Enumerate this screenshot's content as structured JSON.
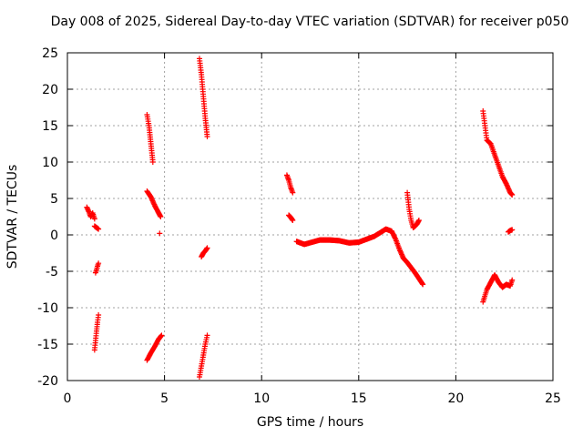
{
  "chart_data": {
    "type": "scatter",
    "title": "Day 008 of 2025, Sidereal Day-to-day VTEC variation (SDTVAR) for receiver p050",
    "xlabel": "GPS time / hours",
    "ylabel": "SDTVAR / TECUs",
    "xlim": [
      0,
      25
    ],
    "ylim": [
      -20,
      25
    ],
    "xticks": [
      "0",
      "5",
      "10",
      "15",
      "20",
      "25"
    ],
    "yticks": [
      "-20",
      "-15",
      "-10",
      "-5",
      "0",
      "5",
      "10",
      "15",
      "20",
      "25"
    ],
    "grid": true,
    "marker": "+",
    "color": "#ff0000",
    "segments": [
      {
        "x": [
          1.0,
          1.1,
          1.2,
          1.3,
          1.4
        ],
        "y": [
          3.8,
          3.2,
          2.5,
          3.0,
          2.2
        ]
      },
      {
        "x": [
          1.4,
          1.6
        ],
        "y": [
          1.2,
          0.8
        ]
      },
      {
        "x": [
          1.45,
          1.5,
          1.55,
          1.6
        ],
        "y": [
          -5.2,
          -4.8,
          -4.3,
          -3.9
        ]
      },
      {
        "x": [
          1.4,
          1.45,
          1.5,
          1.55,
          1.6
        ],
        "y": [
          -15.8,
          -14.5,
          -13.2,
          -12.0,
          -11.0
        ]
      },
      {
        "x": [
          4.1,
          4.2,
          4.3,
          4.4
        ],
        "y": [
          16.5,
          15.0,
          12.5,
          10.0
        ]
      },
      {
        "x": [
          4.1,
          4.3,
          4.5,
          4.7,
          4.8
        ],
        "y": [
          6.0,
          5.2,
          4.0,
          3.0,
          2.5
        ]
      },
      {
        "x": [
          4.75
        ],
        "y": [
          0.2
        ]
      },
      {
        "x": [
          4.1,
          4.3,
          4.5,
          4.7,
          4.85
        ],
        "y": [
          -17.2,
          -16.2,
          -15.3,
          -14.3,
          -13.8
        ]
      },
      {
        "x": [
          6.8,
          6.9,
          7.0,
          7.1,
          7.2
        ],
        "y": [
          24.2,
          22.0,
          19.0,
          16.0,
          13.5
        ]
      },
      {
        "x": [
          6.9,
          7.0,
          7.1,
          7.2
        ],
        "y": [
          -3.0,
          -2.5,
          -2.2,
          -1.8
        ]
      },
      {
        "x": [
          6.8,
          6.9,
          7.0,
          7.1,
          7.2
        ],
        "y": [
          -19.5,
          -18.0,
          -16.5,
          -15.0,
          -13.8
        ]
      },
      {
        "x": [
          11.3,
          11.4,
          11.5,
          11.6
        ],
        "y": [
          8.2,
          7.5,
          6.5,
          5.8
        ]
      },
      {
        "x": [
          11.4,
          11.5,
          11.6
        ],
        "y": [
          2.7,
          2.4,
          2.0
        ]
      },
      {
        "x": [
          11.8,
          12.2,
          12.6,
          13.0,
          13.5,
          14.0,
          14.5,
          15.0,
          15.4,
          15.8,
          16.1,
          16.4,
          16.7,
          16.9,
          17.1,
          17.3
        ],
        "y": [
          -0.9,
          -1.3,
          -1.0,
          -0.7,
          -0.7,
          -0.8,
          -1.1,
          -1.0,
          -0.6,
          -0.2,
          0.3,
          0.8,
          0.5,
          -0.6,
          -2.0,
          -3.2
        ]
      },
      {
        "x": [
          17.3,
          17.5,
          17.7,
          17.9,
          18.1,
          18.3
        ],
        "y": [
          -3.2,
          -3.8,
          -4.5,
          -5.2,
          -6.0,
          -6.8
        ]
      },
      {
        "x": [
          17.5,
          17.6,
          17.7,
          17.8,
          17.9,
          18.0,
          18.1
        ],
        "y": [
          5.8,
          3.5,
          2.0,
          1.0,
          1.2,
          1.5,
          2.0
        ]
      },
      {
        "x": [
          21.4,
          21.5,
          21.6,
          21.8,
          22.0,
          22.2,
          22.4,
          22.6,
          22.8,
          22.9
        ],
        "y": [
          17.0,
          15.0,
          13.0,
          12.5,
          11.0,
          9.5,
          8.0,
          7.0,
          5.8,
          5.5
        ]
      },
      {
        "x": [
          22.7,
          22.8,
          22.9
        ],
        "y": [
          0.4,
          0.6,
          0.7
        ]
      },
      {
        "x": [
          21.4,
          21.6,
          21.8,
          22.0,
          22.2,
          22.4,
          22.6,
          22.8,
          22.9
        ],
        "y": [
          -9.2,
          -7.5,
          -6.5,
          -5.5,
          -6.5,
          -7.2,
          -6.8,
          -7.0,
          -6.2
        ]
      }
    ]
  }
}
